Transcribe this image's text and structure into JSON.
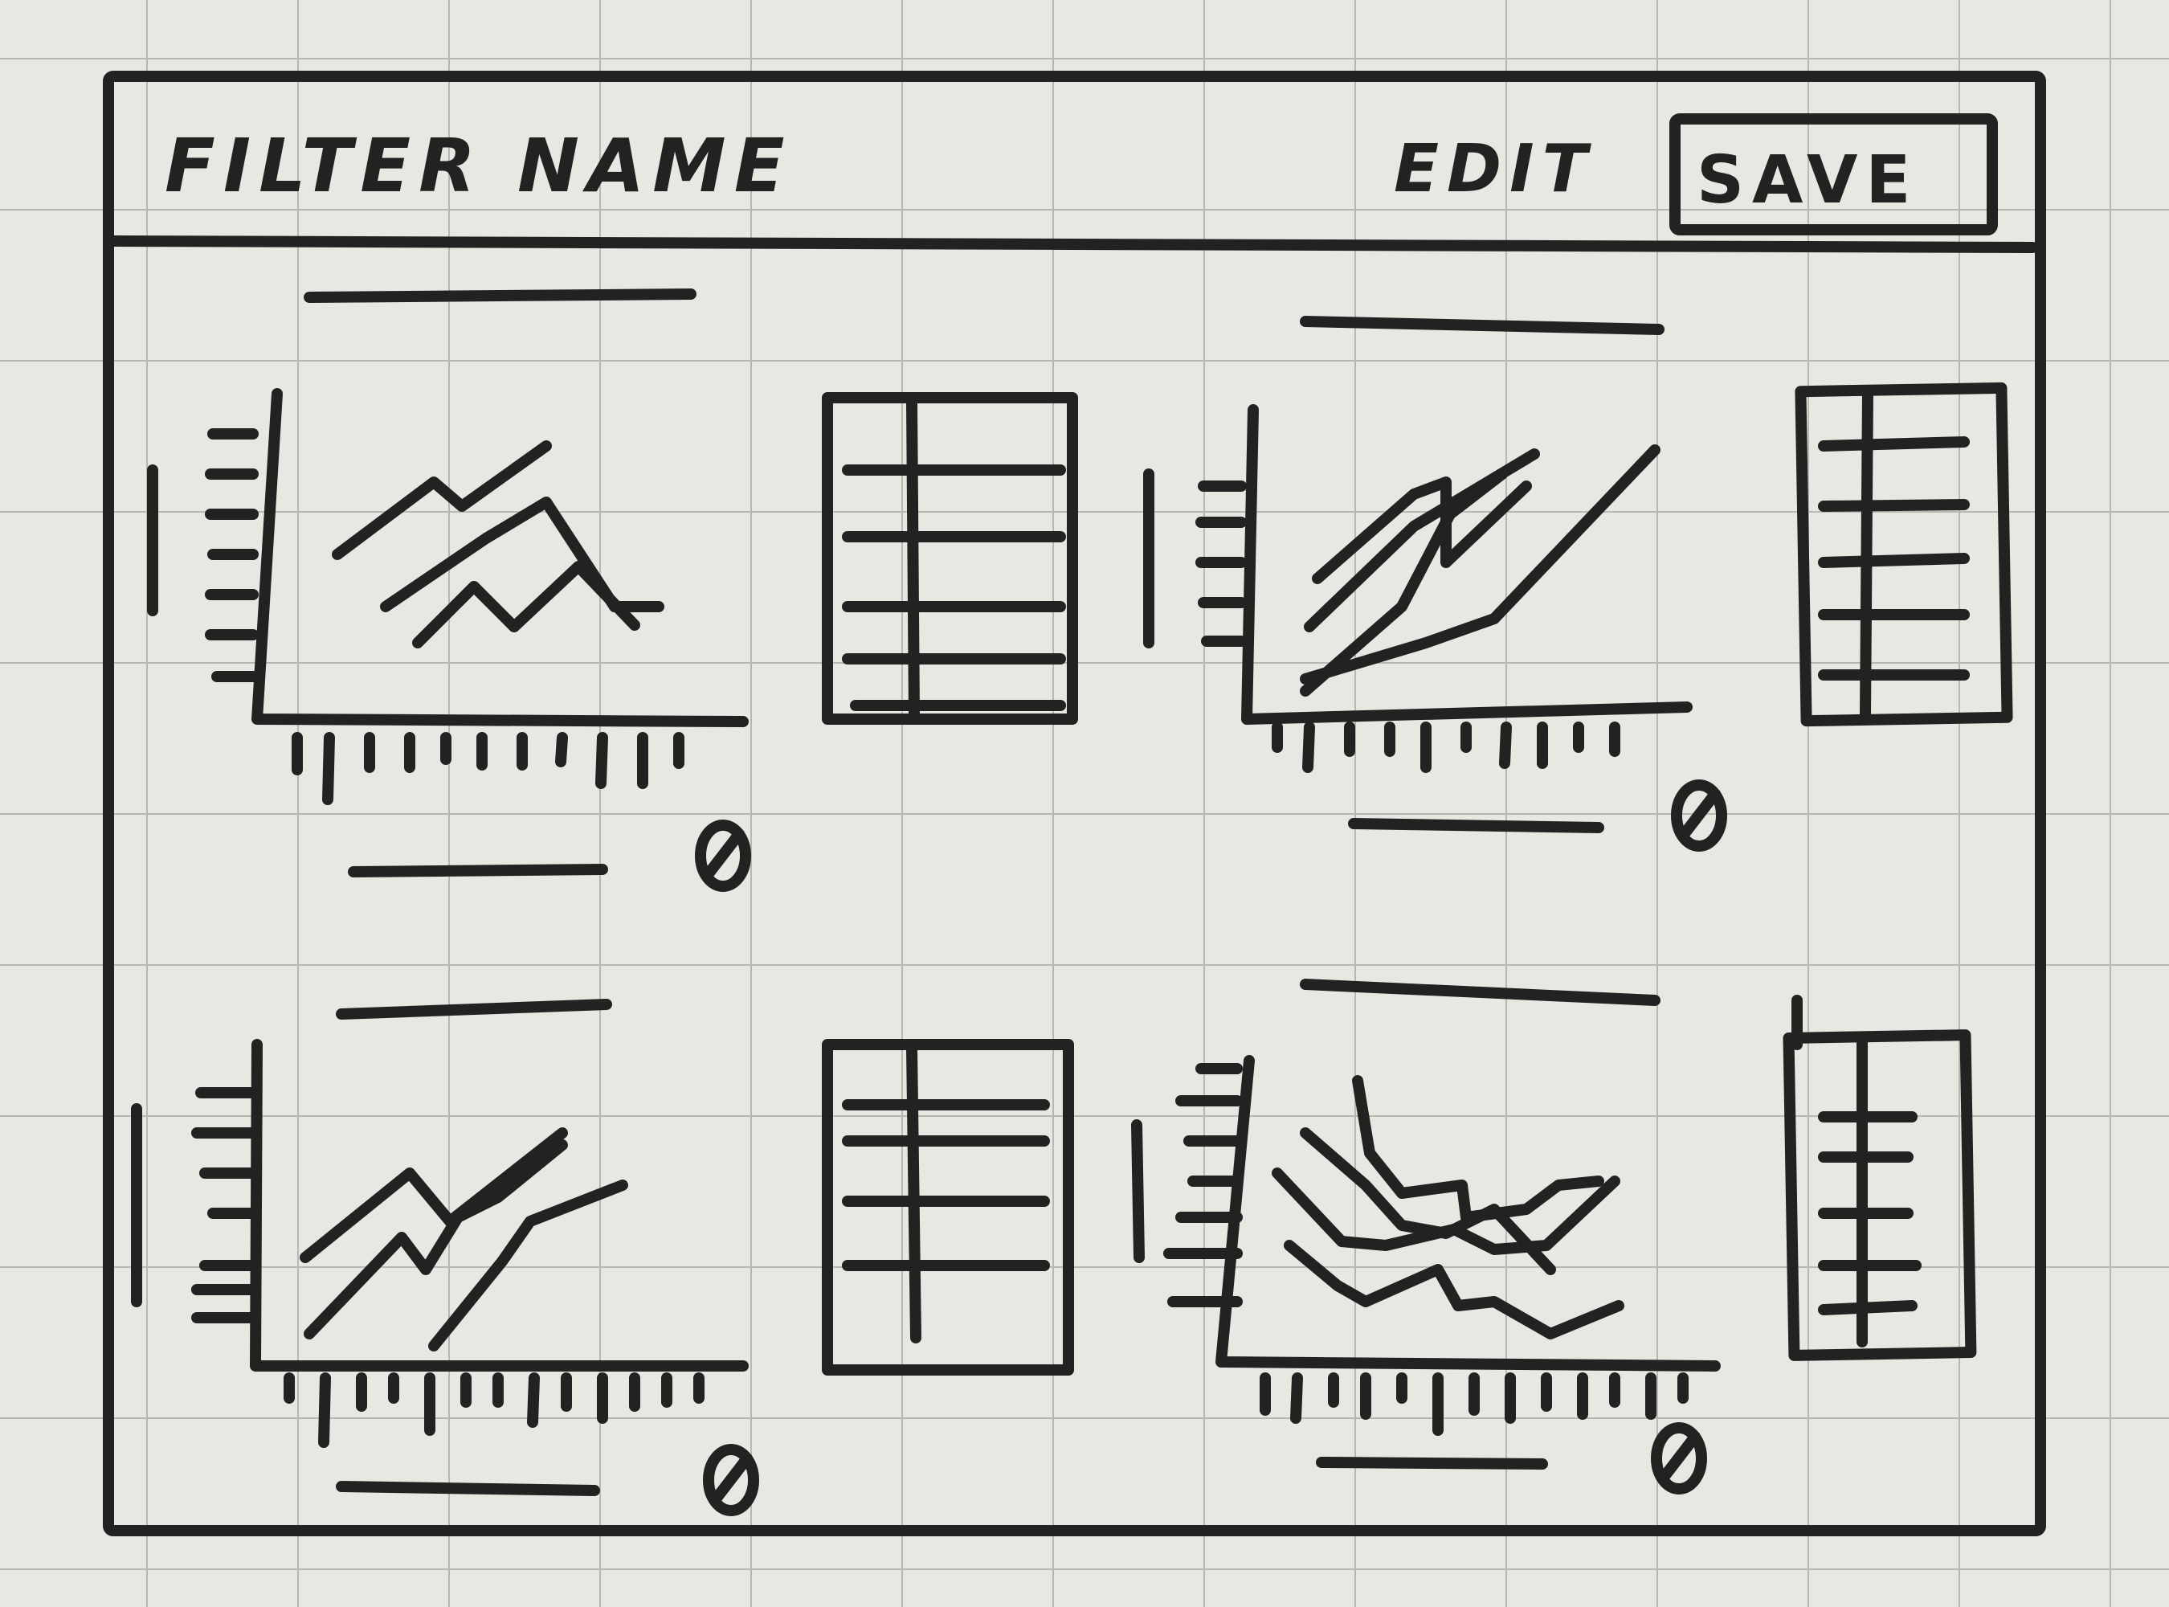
{
  "header": {
    "title": "FILTER NAME",
    "edit_label": "EDIT",
    "save_label": "SAVE"
  },
  "panels": [
    {
      "chart_icon": "line-chart",
      "table_icon": "table",
      "settings_icon": "gear-icon"
    },
    {
      "chart_icon": "line-chart",
      "table_icon": "table",
      "settings_icon": "gear-icon"
    },
    {
      "chart_icon": "line-chart",
      "table_icon": "table",
      "settings_icon": "gear-icon"
    },
    {
      "chart_icon": "line-chart",
      "table_icon": "table",
      "settings_icon": "gear-icon"
    }
  ],
  "colors": {
    "ink": "#222222",
    "paper": "#e9e7e2",
    "grid": "#b9b7b2"
  }
}
